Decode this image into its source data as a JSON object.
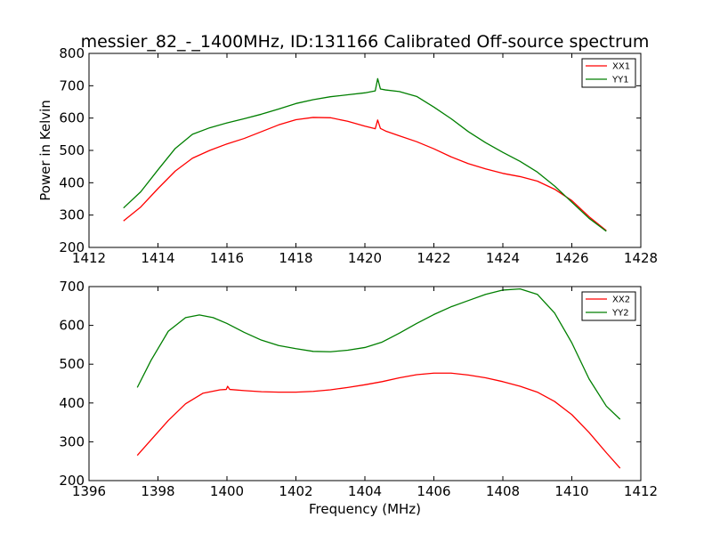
{
  "chart_data": [
    {
      "type": "line",
      "title": "messier_82_-_1400MHz, ID:131166 Calibrated Off-source spectrum",
      "xlabel": "",
      "ylabel": "Power in Kelvin",
      "xlim": [
        1412,
        1428
      ],
      "ylim": [
        200,
        800
      ],
      "xticks": [
        1412,
        1414,
        1416,
        1418,
        1420,
        1422,
        1424,
        1426,
        1428
      ],
      "yticks": [
        200,
        300,
        400,
        500,
        600,
        700,
        800
      ],
      "grid": false,
      "legend_position": "top-right",
      "series": [
        {
          "name": "XX1",
          "color": "#ff0000",
          "points": [
            [
              1413.0,
              282
            ],
            [
              1413.5,
              325
            ],
            [
              1414.0,
              382
            ],
            [
              1414.5,
              436
            ],
            [
              1415.0,
              476
            ],
            [
              1415.5,
              500
            ],
            [
              1416.0,
              520
            ],
            [
              1416.5,
              537
            ],
            [
              1417.0,
              558
            ],
            [
              1417.5,
              579
            ],
            [
              1418.0,
              595
            ],
            [
              1418.5,
              602
            ],
            [
              1419.0,
              601
            ],
            [
              1419.5,
              590
            ],
            [
              1420.0,
              575
            ],
            [
              1420.3,
              567
            ],
            [
              1420.37,
              594
            ],
            [
              1420.45,
              568
            ],
            [
              1420.6,
              560
            ],
            [
              1421.0,
              545
            ],
            [
              1421.5,
              527
            ],
            [
              1422.0,
              505
            ],
            [
              1422.5,
              480
            ],
            [
              1423.0,
              459
            ],
            [
              1423.5,
              443
            ],
            [
              1424.0,
              429
            ],
            [
              1424.5,
              419
            ],
            [
              1425.0,
              405
            ],
            [
              1425.5,
              380
            ],
            [
              1426.0,
              345
            ],
            [
              1426.5,
              295
            ],
            [
              1427.0,
              252
            ]
          ]
        },
        {
          "name": "YY1",
          "color": "#007f00",
          "points": [
            [
              1413.0,
              322
            ],
            [
              1413.5,
              372
            ],
            [
              1414.0,
              440
            ],
            [
              1414.5,
              506
            ],
            [
              1415.0,
              550
            ],
            [
              1415.5,
              570
            ],
            [
              1416.0,
              585
            ],
            [
              1416.5,
              598
            ],
            [
              1417.0,
              612
            ],
            [
              1417.5,
              628
            ],
            [
              1418.0,
              645
            ],
            [
              1418.5,
              657
            ],
            [
              1419.0,
              666
            ],
            [
              1419.5,
              672
            ],
            [
              1420.0,
              678
            ],
            [
              1420.3,
              684
            ],
            [
              1420.37,
              722
            ],
            [
              1420.45,
              690
            ],
            [
              1420.6,
              687
            ],
            [
              1421.0,
              682
            ],
            [
              1421.5,
              667
            ],
            [
              1422.0,
              634
            ],
            [
              1422.5,
              598
            ],
            [
              1423.0,
              558
            ],
            [
              1423.5,
              524
            ],
            [
              1424.0,
              494
            ],
            [
              1424.5,
              466
            ],
            [
              1425.0,
              433
            ],
            [
              1425.5,
              390
            ],
            [
              1426.0,
              340
            ],
            [
              1426.5,
              290
            ],
            [
              1427.0,
              250
            ]
          ]
        }
      ]
    },
    {
      "type": "line",
      "title": "",
      "xlabel": "Frequency (MHz)",
      "ylabel": "",
      "xlim": [
        1396,
        1412
      ],
      "ylim": [
        200,
        700
      ],
      "xticks": [
        1396,
        1398,
        1400,
        1402,
        1404,
        1406,
        1408,
        1410,
        1412
      ],
      "yticks": [
        200,
        300,
        400,
        500,
        600,
        700
      ],
      "grid": false,
      "legend_position": "top-right",
      "series": [
        {
          "name": "XX2",
          "color": "#ff0000",
          "points": [
            [
              1397.4,
              265
            ],
            [
              1397.8,
              305
            ],
            [
              1398.3,
              355
            ],
            [
              1398.8,
              398
            ],
            [
              1399.3,
              425
            ],
            [
              1399.8,
              434
            ],
            [
              1399.98,
              435
            ],
            [
              1400.02,
              443
            ],
            [
              1400.08,
              435
            ],
            [
              1400.5,
              432
            ],
            [
              1401.0,
              429
            ],
            [
              1401.5,
              428
            ],
            [
              1402.0,
              428
            ],
            [
              1402.5,
              430
            ],
            [
              1403.0,
              434
            ],
            [
              1403.5,
              440
            ],
            [
              1404.0,
              447
            ],
            [
              1404.5,
              455
            ],
            [
              1405.0,
              465
            ],
            [
              1405.5,
              473
            ],
            [
              1406.0,
              477
            ],
            [
              1406.5,
              477
            ],
            [
              1407.0,
              472
            ],
            [
              1407.5,
              465
            ],
            [
              1408.0,
              455
            ],
            [
              1408.5,
              443
            ],
            [
              1409.0,
              428
            ],
            [
              1409.5,
              404
            ],
            [
              1410.0,
              370
            ],
            [
              1410.5,
              324
            ],
            [
              1411.0,
              272
            ],
            [
              1411.4,
              232
            ]
          ]
        },
        {
          "name": "YY2",
          "color": "#007f00",
          "points": [
            [
              1397.4,
              440
            ],
            [
              1397.8,
              510
            ],
            [
              1398.3,
              585
            ],
            [
              1398.8,
              620
            ],
            [
              1399.2,
              627
            ],
            [
              1399.6,
              620
            ],
            [
              1400.0,
              605
            ],
            [
              1400.5,
              582
            ],
            [
              1401.0,
              562
            ],
            [
              1401.5,
              548
            ],
            [
              1402.0,
              540
            ],
            [
              1402.5,
              533
            ],
            [
              1403.0,
              532
            ],
            [
              1403.5,
              536
            ],
            [
              1404.0,
              543
            ],
            [
              1404.5,
              557
            ],
            [
              1405.0,
              580
            ],
            [
              1405.5,
              605
            ],
            [
              1406.0,
              628
            ],
            [
              1406.5,
              648
            ],
            [
              1407.0,
              664
            ],
            [
              1407.5,
              680
            ],
            [
              1408.0,
              691
            ],
            [
              1408.5,
              694
            ],
            [
              1409.0,
              680
            ],
            [
              1409.5,
              632
            ],
            [
              1410.0,
              555
            ],
            [
              1410.5,
              462
            ],
            [
              1411.0,
              392
            ],
            [
              1411.4,
              358
            ]
          ]
        }
      ]
    }
  ]
}
